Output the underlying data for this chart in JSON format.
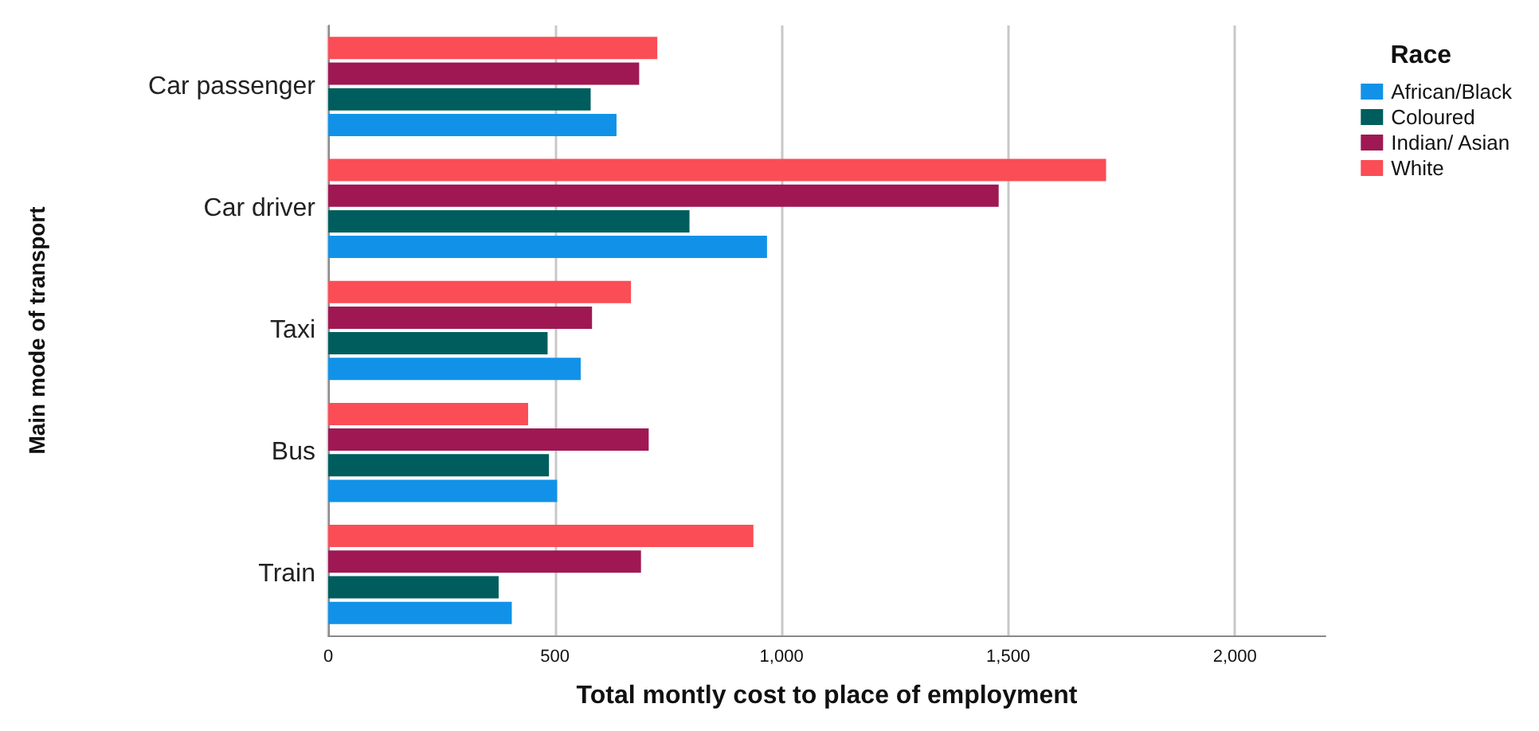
{
  "chart_data": {
    "type": "bar",
    "orientation": "horizontal",
    "xlabel": "Total montly cost to place of employment",
    "ylabel": "Main mode of transport",
    "legend_title": "Race",
    "legend": "top right",
    "grid": "x",
    "categories": [
      "Car passenger",
      "Car driver",
      "Taxi",
      "Bus",
      "Train"
    ],
    "xlim": [
      0,
      2200
    ],
    "xticks": [
      0,
      {
        "value": 500,
        "label": "500"
      },
      {
        "value": 1000,
        "label": "1,000"
      },
      {
        "value": 1500,
        "label": "1,500"
      },
      {
        "value": 2000,
        "label": "2,000"
      }
    ],
    "series": [
      {
        "name": "African/Black",
        "color": "#1192e8",
        "values": [
          636,
          968,
          557,
          505,
          405
        ]
      },
      {
        "name": "Coloured",
        "color": "#005d5d",
        "values": [
          579,
          797,
          484,
          487,
          376
        ]
      },
      {
        "name": "Indian/ Asian",
        "color": "#9f1853",
        "values": [
          686,
          1479,
          582,
          707,
          690
        ]
      },
      {
        "name": "White",
        "color": "#fa4d56",
        "values": [
          726,
          1716,
          668,
          441,
          938
        ]
      }
    ]
  }
}
